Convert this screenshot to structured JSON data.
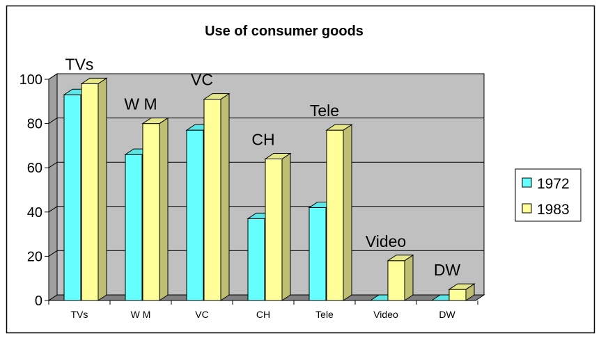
{
  "chart_data": {
    "type": "bar",
    "title": "Use of consumer goods",
    "xlabel": "",
    "ylabel": "",
    "ylim": [
      0,
      100
    ],
    "yticks": [
      "0",
      "20",
      "40",
      "60",
      "80",
      "100"
    ],
    "categories": [
      "TVs",
      "W M",
      "VC",
      "CH",
      "Tele",
      "Video",
      "DW"
    ],
    "series": [
      {
        "name": "1972",
        "values": [
          93,
          66,
          77,
          37,
          42,
          0,
          0
        ],
        "color": "#66ffff"
      },
      {
        "name": "1983",
        "values": [
          98,
          80,
          91,
          64,
          77,
          18,
          5
        ],
        "color": "#ffff99"
      }
    ],
    "annotations": [
      "TVs",
      "W M",
      "VC",
      "CH",
      "Tele",
      "Video",
      "DW"
    ],
    "grid": true,
    "legend_position": "right",
    "plot_background": "#c0c0c0"
  }
}
